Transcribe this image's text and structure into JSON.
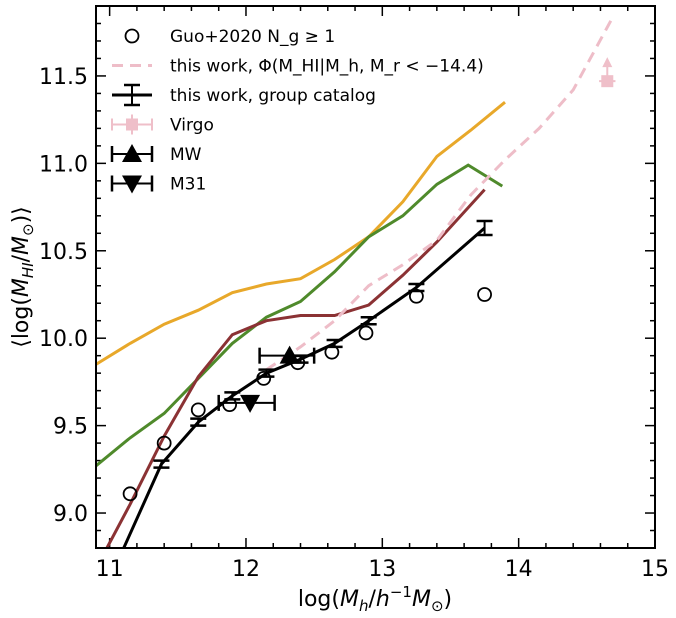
{
  "chart_data": {
    "type": "line",
    "xlabel": "log(M_h/h^-1 M_⊙)",
    "ylabel": "⟨log(M_HI/M_⊙)⟩",
    "xlim": [
      10.9,
      15.0
    ],
    "ylim": [
      8.8,
      11.9
    ],
    "xticks": [
      "11",
      "12",
      "13",
      "14",
      "15"
    ],
    "yticks": [
      "9.0",
      "9.5",
      "10.0",
      "10.5",
      "11.0",
      "11.5"
    ],
    "legend_position": "top-left",
    "legend": [
      {
        "key": "guo",
        "label": "Guo+2020 N_g ≥ 1"
      },
      {
        "key": "phi",
        "label": "this work, Φ(M_HI|M_h, M_r < −14.4)"
      },
      {
        "key": "group",
        "label": "this work, group catalog"
      },
      {
        "key": "virgo",
        "label": "Virgo"
      },
      {
        "key": "mw",
        "label": "MW"
      },
      {
        "key": "m31",
        "label": "M31"
      }
    ],
    "lines": [
      {
        "key": "orange",
        "color": "#e8a82a",
        "x": [
          10.9,
          11.15,
          11.4,
          11.65,
          11.9,
          12.15,
          12.4,
          12.65,
          12.9,
          13.15,
          13.4,
          13.65,
          13.9
        ],
        "y": [
          9.85,
          9.97,
          10.08,
          10.16,
          10.26,
          10.31,
          10.34,
          10.45,
          10.58,
          10.78,
          11.04,
          11.19,
          11.35
        ]
      },
      {
        "key": "green",
        "color": "#4f8a2b",
        "x": [
          10.9,
          11.15,
          11.4,
          11.65,
          11.9,
          12.15,
          12.4,
          12.65,
          12.9,
          13.15,
          13.4,
          13.63,
          13.88
        ],
        "y": [
          9.27,
          9.43,
          9.57,
          9.77,
          9.97,
          10.12,
          10.21,
          10.38,
          10.58,
          10.7,
          10.88,
          10.99,
          10.87
        ]
      },
      {
        "key": "darkred",
        "color": "#8b3234",
        "x": [
          10.98,
          11.15,
          11.4,
          11.65,
          11.9,
          12.15,
          12.4,
          12.65,
          12.9,
          13.15,
          13.4,
          13.75
        ],
        "y": [
          8.8,
          9.05,
          9.44,
          9.78,
          10.02,
          10.1,
          10.13,
          10.13,
          10.19,
          10.36,
          10.55,
          10.85
        ]
      },
      {
        "key": "phi",
        "color": "#eebdc8",
        "dashed": true,
        "x": [
          12.15,
          12.4,
          12.65,
          12.9,
          13.15,
          13.4,
          13.65,
          13.9,
          14.15,
          14.4,
          14.7
        ],
        "y": [
          9.82,
          9.95,
          10.1,
          10.3,
          10.42,
          10.56,
          10.82,
          11.02,
          11.2,
          11.42,
          11.85
        ]
      }
    ],
    "group_catalog": {
      "color": "#000000",
      "x": [
        11.0,
        11.38,
        11.65,
        11.9,
        12.15,
        12.4,
        12.65,
        12.9,
        13.25,
        13.75
      ],
      "y": [
        8.62,
        9.28,
        9.52,
        9.67,
        9.8,
        9.88,
        9.97,
        10.1,
        10.29,
        10.63
      ],
      "yerr": [
        0,
        0.02,
        0.02,
        0.02,
        0.02,
        0.02,
        0.02,
        0.02,
        0.02,
        0.04
      ]
    },
    "guo_points": {
      "x": [
        11.15,
        11.4,
        11.65,
        11.88,
        12.13,
        12.38,
        12.63,
        12.88,
        13.25,
        13.75
      ],
      "y": [
        9.11,
        9.4,
        9.59,
        9.62,
        9.77,
        9.86,
        9.92,
        10.03,
        10.24,
        10.25
      ]
    },
    "mw": {
      "x": 12.32,
      "y": 9.9,
      "xerr": [
        0.22,
        0.18
      ]
    },
    "m31": {
      "x": 12.03,
      "y": 9.63,
      "xerr": [
        0.23,
        0.18
      ]
    },
    "virgo": {
      "x": 14.65,
      "y": 11.47,
      "xerr": 0.06,
      "lower_limit": true,
      "color": "#efbfc9"
    }
  }
}
